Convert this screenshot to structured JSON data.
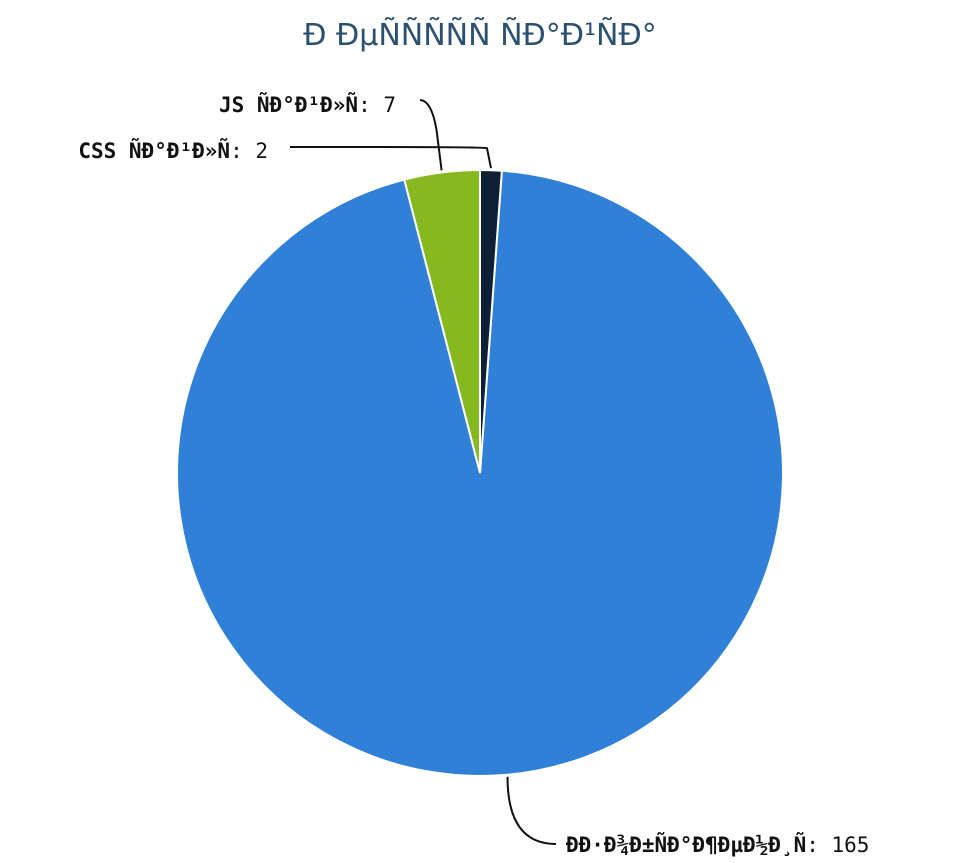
{
  "chart_data": {
    "type": "pie",
    "title": "Ð ÐµÑÑÑÑÑ ÑÐ°Ð¹ÑÐ°",
    "slices": [
      {
        "label": "JS ÑÐ°Ð¹Ð»Ñ",
        "value": 7,
        "color": "#86b820"
      },
      {
        "label": "ÐÐ·Ð¾Ð±ÑÐ°Ð¶ÐµÐ½Ð¸Ñ",
        "value": 165,
        "color": "#3180d8"
      },
      {
        "label": "CSS ÑÐ°Ð¹Ð»Ñ",
        "value": 2,
        "color": "#0f2036"
      }
    ],
    "legend": "none",
    "start_angle": "top",
    "direction": "counter-clockwise"
  }
}
